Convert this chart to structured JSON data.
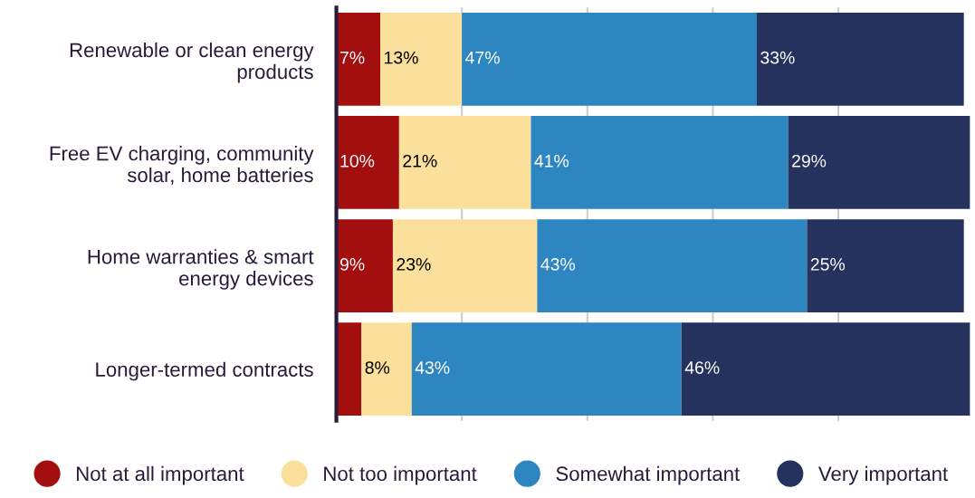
{
  "chart_data": {
    "type": "bar",
    "orientation": "horizontal",
    "stacked": true,
    "categories": [
      "Renewable or clean energy\nproducts",
      "Free EV charging, community\nsolar, home batteries",
      "Home warranties & smart\nenergy devices",
      "Longer-termed contracts"
    ],
    "series": [
      {
        "name": "Not at all important",
        "color": "#a30f0f",
        "values": [
          7,
          10,
          9,
          4
        ],
        "value_labels": [
          "7%",
          "10%",
          "9%",
          null
        ]
      },
      {
        "name": "Not too important",
        "color": "#fbe09b",
        "values": [
          13,
          21,
          23,
          8
        ],
        "value_labels": [
          "13%",
          "21%",
          "23%",
          "8%"
        ]
      },
      {
        "name": "Somewhat important",
        "color": "#2e86c1",
        "values": [
          47,
          41,
          43,
          43
        ],
        "value_labels": [
          "47%",
          "41%",
          "43%",
          "43%"
        ]
      },
      {
        "name": "Very important",
        "color": "#26325e",
        "values": [
          33,
          29,
          25,
          46
        ],
        "value_labels": [
          "33%",
          "29%",
          "25%",
          "46%"
        ]
      }
    ],
    "xlim": [
      0,
      101
    ],
    "xticks": [
      {
        "value": 20,
        "label": null
      },
      {
        "value": 40,
        "label": null
      },
      {
        "value": 60,
        "label": null
      },
      {
        "value": 80,
        "label": null
      }
    ],
    "tick_labels": "y",
    "grid": "x",
    "legend": "bottom"
  }
}
